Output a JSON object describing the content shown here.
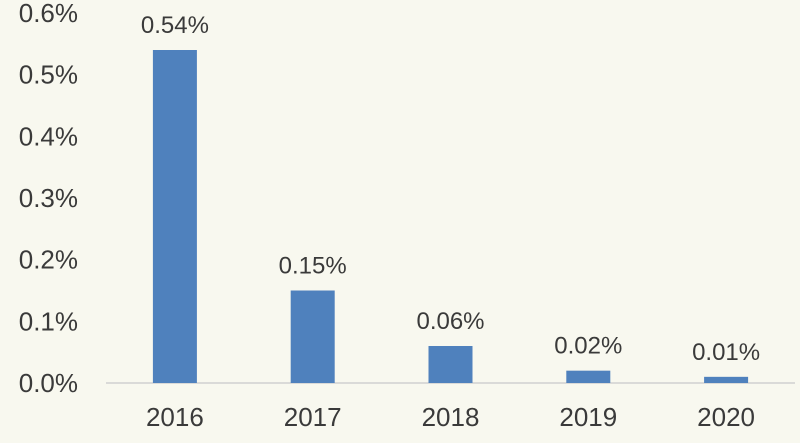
{
  "chart_data": {
    "type": "bar",
    "categories": [
      "2016",
      "2017",
      "2018",
      "2019",
      "2020"
    ],
    "values": [
      0.54,
      0.15,
      0.06,
      0.02,
      0.01
    ],
    "data_labels": [
      "0.54%",
      "0.15%",
      "0.06%",
      "0.02%",
      "0.01%"
    ],
    "y_ticks": [
      "0.0%",
      "0.1%",
      "0.2%",
      "0.3%",
      "0.4%",
      "0.5%",
      "0.6%"
    ],
    "ylim": [
      0,
      0.6
    ],
    "title": "",
    "xlabel": "",
    "ylabel": "",
    "grid": false,
    "legend": "none",
    "bar_color": "#4f81bd"
  }
}
